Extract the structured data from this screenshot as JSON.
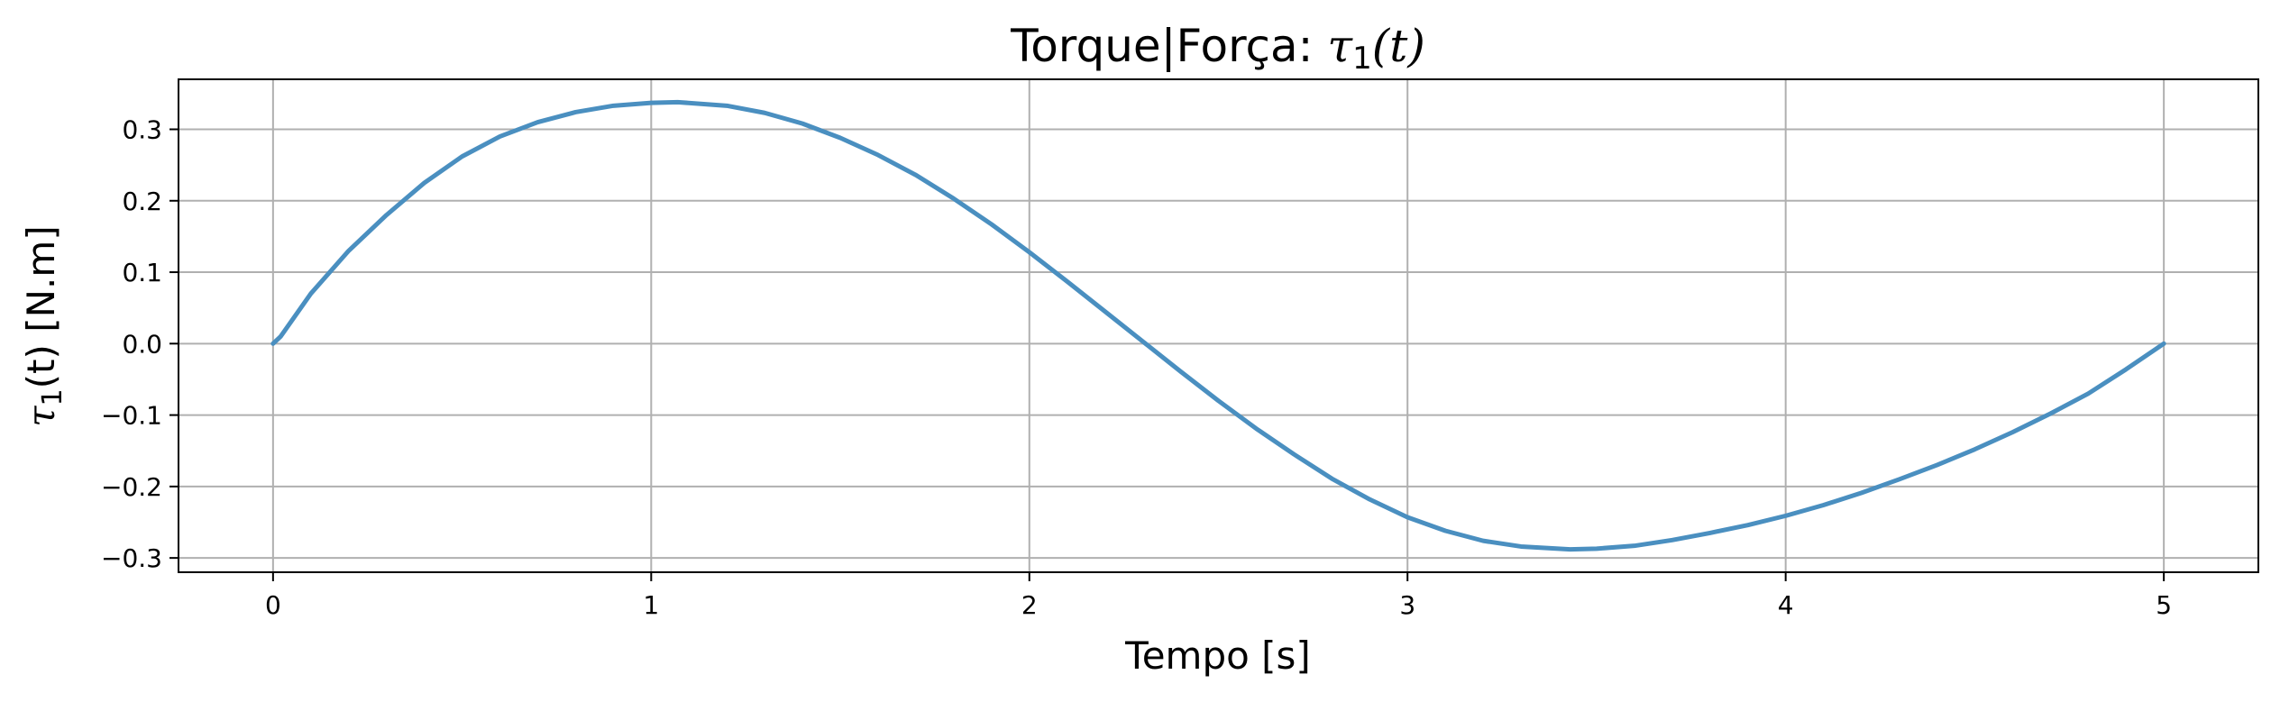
{
  "chart_data": {
    "type": "line",
    "title_prefix": "Torque|Força: ",
    "title_math": "τ",
    "title_sub": "1",
    "title_suffix": "(t)",
    "xlabel": "Tempo [s]",
    "ylabel_math": "τ",
    "ylabel_sub": "1",
    "ylabel_suffix": "(t) [N.m]",
    "xlim": [
      -0.25,
      5.25
    ],
    "ylim": [
      -0.32,
      0.37
    ],
    "xticks": [
      0,
      1,
      2,
      3,
      4,
      5
    ],
    "xtick_labels": [
      "0",
      "1",
      "2",
      "3",
      "4",
      "5"
    ],
    "yticks": [
      -0.3,
      -0.2,
      -0.1,
      0.0,
      0.1,
      0.2,
      0.3
    ],
    "ytick_labels": [
      "−0.3",
      "−0.2",
      "−0.1",
      "0.0",
      "0.1",
      "0.2",
      "0.3"
    ],
    "grid": true,
    "line_color": "#4a8fc0",
    "series": [
      {
        "x": [
          0.0,
          0.02,
          0.1,
          0.2,
          0.3,
          0.4,
          0.5,
          0.6,
          0.7,
          0.8,
          0.9,
          1.0,
          1.07,
          1.2,
          1.3,
          1.4,
          1.5,
          1.6,
          1.7,
          1.8,
          1.9,
          2.0,
          2.1,
          2.2,
          2.3,
          2.4,
          2.5,
          2.6,
          2.7,
          2.8,
          2.9,
          3.0,
          3.1,
          3.2,
          3.3,
          3.43,
          3.5,
          3.6,
          3.7,
          3.8,
          3.9,
          4.0,
          4.1,
          4.2,
          4.3,
          4.4,
          4.5,
          4.6,
          4.7,
          4.8,
          4.9,
          5.0
        ],
        "y": [
          0.0,
          0.01,
          0.07,
          0.13,
          0.18,
          0.225,
          0.262,
          0.29,
          0.31,
          0.324,
          0.333,
          0.337,
          0.338,
          0.333,
          0.323,
          0.308,
          0.288,
          0.264,
          0.236,
          0.203,
          0.167,
          0.128,
          0.087,
          0.045,
          0.003,
          -0.039,
          -0.08,
          -0.119,
          -0.155,
          -0.189,
          -0.218,
          -0.243,
          -0.262,
          -0.276,
          -0.284,
          -0.288,
          -0.287,
          -0.283,
          -0.275,
          -0.265,
          -0.254,
          -0.241,
          -0.226,
          -0.209,
          -0.19,
          -0.17,
          -0.148,
          -0.124,
          -0.098,
          -0.07,
          -0.036,
          0.0
        ]
      }
    ]
  }
}
